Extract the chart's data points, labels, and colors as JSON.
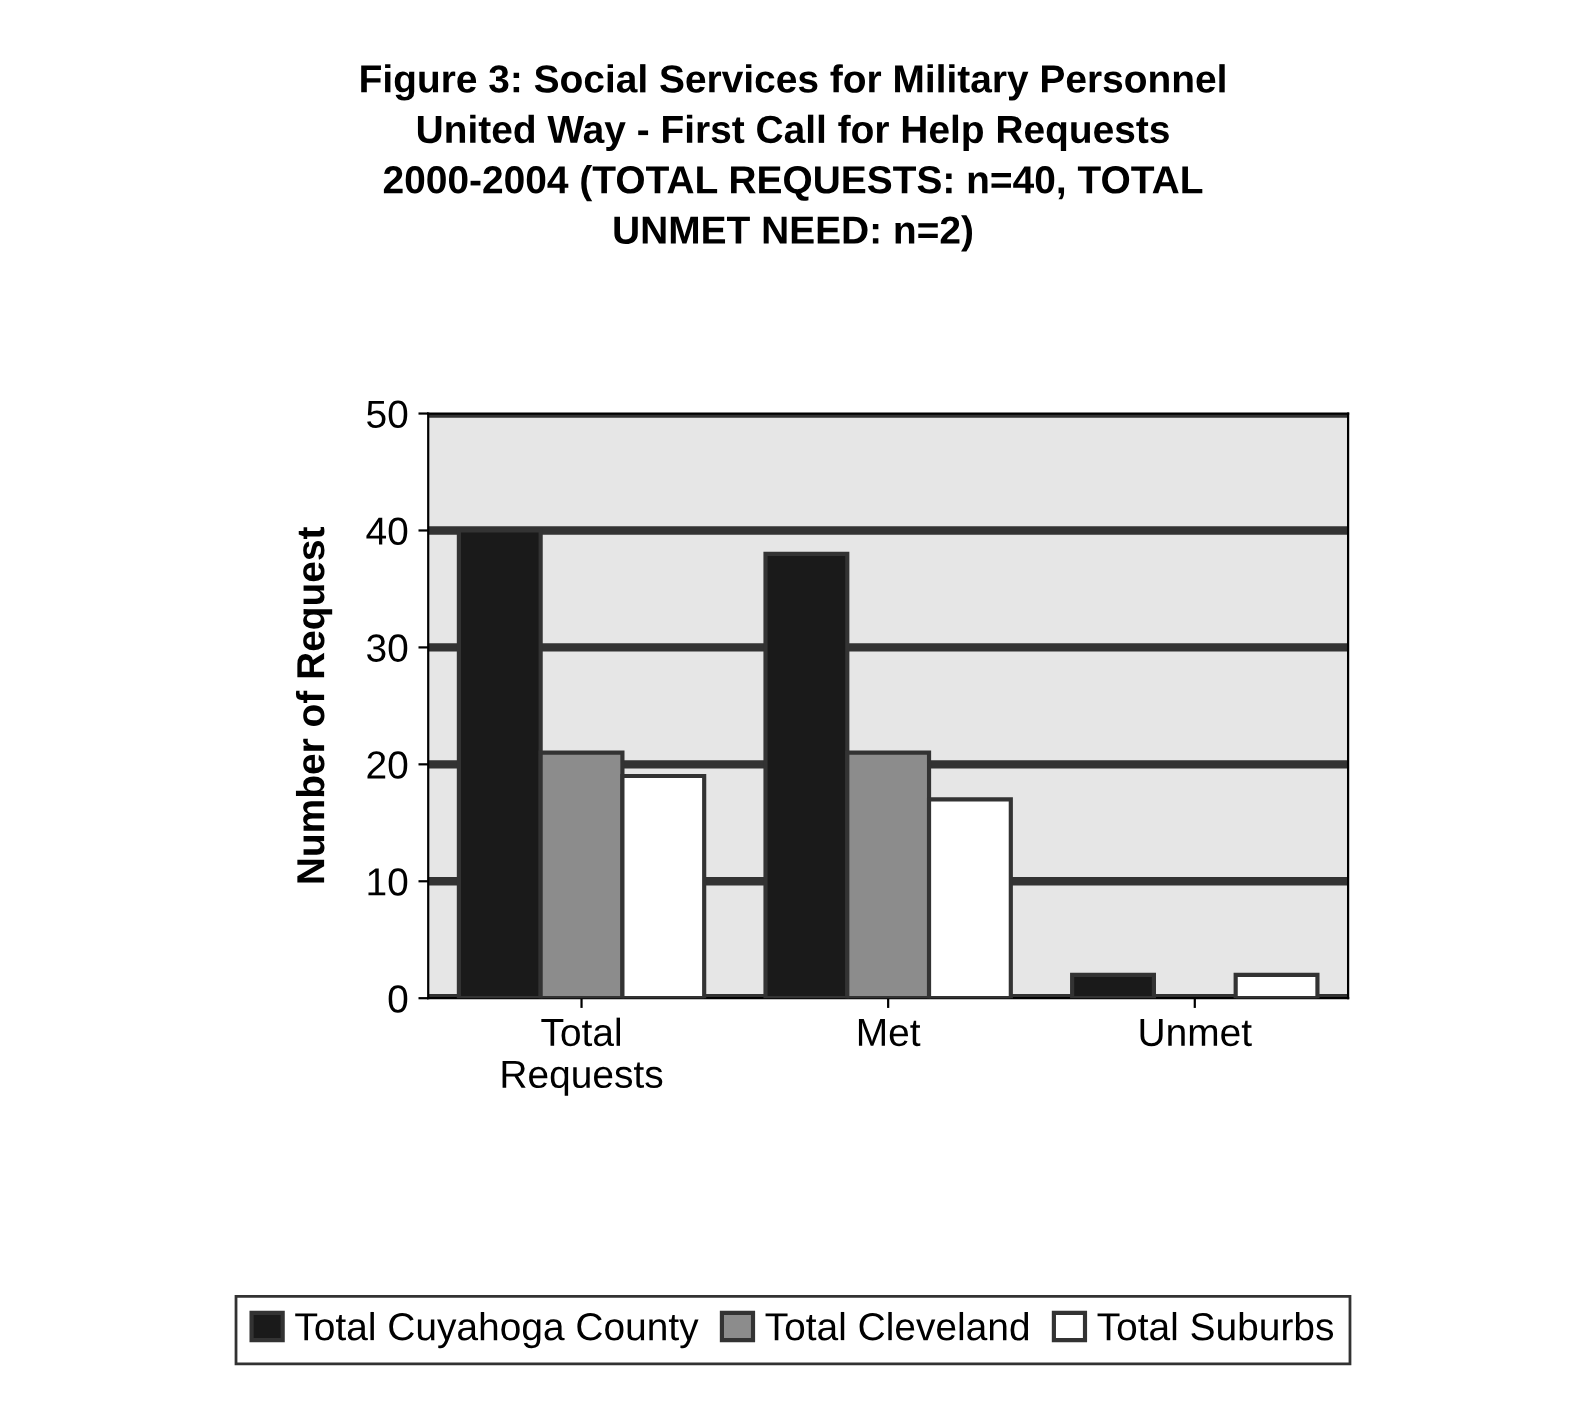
{
  "chart_data": {
    "type": "bar",
    "title": "Figure 3: Social Services for Military Personnel\nUnited Way - First Call for Help Requests\n2000-2004 (TOTAL REQUESTS: n=40, TOTAL\nUNMET NEED: n=2)",
    "ylabel": "Number of Request",
    "categories": [
      "Total\nRequests",
      "Met",
      "Unmet"
    ],
    "series": [
      {
        "name": "Total Cuyahoga County",
        "color": "#1a1a1a",
        "values": [
          40,
          38,
          2
        ]
      },
      {
        "name": "Total Cleveland",
        "color": "#8c8c8c",
        "values": [
          21,
          21,
          null
        ]
      },
      {
        "name": "Total Suburbs",
        "color": "#ffffff",
        "values": [
          19,
          17,
          2
        ]
      }
    ],
    "ylim": [
      0,
      50
    ],
    "yticks": [
      0,
      10,
      20,
      30,
      40,
      50
    ],
    "grid": "y",
    "legend": "bottom"
  }
}
